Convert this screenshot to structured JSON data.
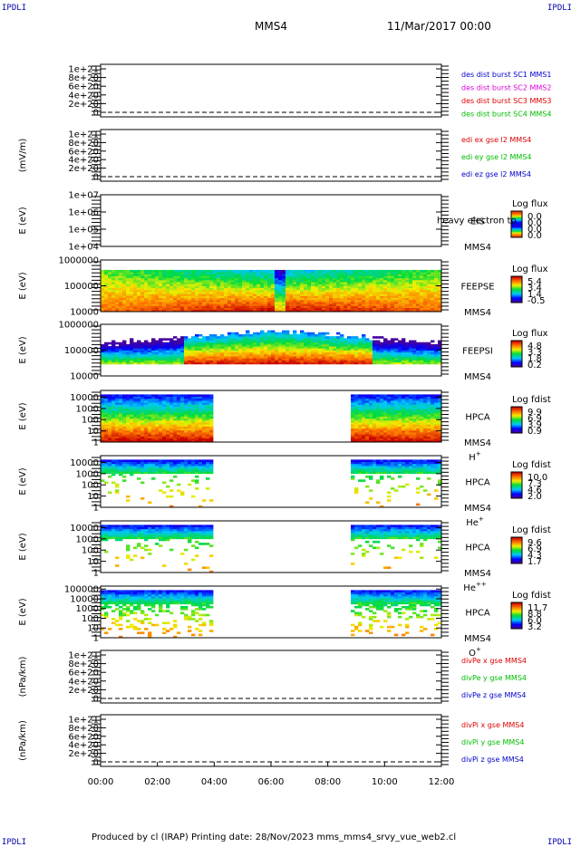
{
  "header": {
    "corner_label": "IPDLI",
    "spacecraft": "MMS4",
    "date": "11/Mar/2017 00:00"
  },
  "footer": {
    "text": "Produced by cl (IRAP)   Printing date: 28/Nov/2023   mms_mms4_srvy_vue_web2.cl"
  },
  "time_axis": {
    "ticks": [
      "00:00",
      "02:00",
      "04:00",
      "06:00",
      "08:00",
      "10:00",
      "12:00"
    ]
  },
  "colors": {
    "red": "#dd0000",
    "green": "#00bb00",
    "blue": "#0000cc",
    "magenta": "#dd00dd",
    "dash": "#000000"
  },
  "chart_data": [
    {
      "type": "line",
      "panel": "des",
      "ylabel": "",
      "ytick_labels": [
        "1e+21",
        "8e+20",
        "6e+20",
        "4e+20",
        "2e+20",
        "0"
      ],
      "ylim": [
        0,
        1e+21
      ],
      "legend": [
        {
          "name": "des dist burst SC1 MMS1",
          "color": "#0000cc"
        },
        {
          "name": "des dist burst SC2 MMS2",
          "color": "#dd00dd"
        },
        {
          "name": "des dist burst SC3 MMS3",
          "color": "#dd0000"
        },
        {
          "name": "des dist burst SC4 MMS4",
          "color": "#00bb00"
        }
      ],
      "series": []
    },
    {
      "type": "line",
      "panel": "edi",
      "ylabel": "(mV/m)",
      "ytick_labels": [
        "1e+21",
        "8e+20",
        "6e+20",
        "4e+20",
        "2e+20",
        "0"
      ],
      "ylim": [
        0,
        1e+21
      ],
      "legend": [
        {
          "name": "edi ex gse l2 MMS4",
          "color": "#dd0000"
        },
        {
          "name": "edi ey gse l2 MMS4",
          "color": "#00bb00"
        },
        {
          "name": "edi ez gse l2 MMS4",
          "color": "#0000cc"
        }
      ],
      "series": []
    },
    {
      "type": "heatmap",
      "panel": "eis",
      "ylabel": "E (eV)",
      "ytick_labels": [
        "1e+07",
        "1e+06",
        "1e+05",
        "1e+04"
      ],
      "ylim": [
        10000.0,
        10000000.0
      ],
      "side_labels": [
        "EIS",
        "MMS4"
      ],
      "overlay_text": "heavy electron to",
      "cbar_title": "Log flux",
      "cbar_labels": [
        "0.0",
        "0.0",
        "0.0",
        "0.0"
      ],
      "bands": []
    },
    {
      "type": "heatmap",
      "panel": "feeps_e",
      "ylabel": "E (eV)",
      "ytick_labels": [
        "1000000",
        "100000",
        "10000"
      ],
      "ylim": [
        10000,
        1000000
      ],
      "side_labels": [
        "FEEPSE",
        "MMS4"
      ],
      "cbar_title": "Log flux",
      "cbar_labels": [
        "5.4",
        "3.4",
        "1.4",
        "-0.5"
      ]
    },
    {
      "type": "heatmap",
      "panel": "feeps_i",
      "ylabel": "E (eV)",
      "ytick_labels": [
        "1000000",
        "100000",
        "10000"
      ],
      "ylim": [
        10000,
        1000000
      ],
      "side_labels": [
        "FEEPSI",
        "MMS4"
      ],
      "cbar_title": "Log flux",
      "cbar_labels": [
        "4.8",
        "3.3",
        "1.8",
        "0.2"
      ]
    },
    {
      "type": "heatmap",
      "panel": "hpca_h",
      "ylabel": "E (eV)",
      "ytick_labels": [
        "10000",
        "1000",
        "100",
        "10",
        "1"
      ],
      "ylim": [
        1,
        40000
      ],
      "side_labels": [
        "HPCA",
        "MMS4"
      ],
      "species": "H",
      "species_sup": "+",
      "cbar_title": "Log fdist",
      "cbar_labels": [
        "9.9",
        "6.9",
        "3.9",
        "0.9"
      ],
      "data_intervals_hours": [
        [
          0,
          3.95
        ],
        [
          8.75,
          12
        ]
      ]
    },
    {
      "type": "heatmap",
      "panel": "hpca_he1",
      "ylabel": "E (eV)",
      "ytick_labels": [
        "10000",
        "1000",
        "100",
        "10",
        "1"
      ],
      "ylim": [
        1,
        40000
      ],
      "side_labels": [
        "HPCA",
        "MMS4"
      ],
      "species": "He",
      "species_sup": "+",
      "cbar_title": "Log fdist",
      "cbar_labels": [
        "10.0",
        "7.3",
        "4.6",
        "2.0"
      ],
      "data_intervals_hours": [
        [
          0,
          3.95
        ],
        [
          8.75,
          12
        ]
      ]
    },
    {
      "type": "heatmap",
      "panel": "hpca_he2",
      "ylabel": "E (eV)",
      "ytick_labels": [
        "10000",
        "1000",
        "100",
        "10",
        "1"
      ],
      "ylim": [
        1,
        40000
      ],
      "side_labels": [
        "HPCA",
        "MMS4"
      ],
      "species": "He",
      "species_sup": "++",
      "cbar_title": "Log fdist",
      "cbar_labels": [
        "9.6",
        "6.9",
        "4.3",
        "1.7"
      ],
      "data_intervals_hours": [
        [
          0,
          3.95
        ],
        [
          8.75,
          12
        ]
      ]
    },
    {
      "type": "heatmap",
      "panel": "hpca_o",
      "ylabel": "E (eV)",
      "ytick_labels": [
        "100000",
        "10000",
        "1000",
        "100",
        "10",
        "1"
      ],
      "ylim": [
        1,
        200000
      ],
      "side_labels": [
        "HPCA",
        "MMS4"
      ],
      "species": "O",
      "species_sup": "+",
      "cbar_title": "Log fdist",
      "cbar_labels": [
        "11.7",
        "8.8",
        "6.0",
        "3.2"
      ],
      "data_intervals_hours": [
        [
          0,
          3.95
        ],
        [
          8.75,
          12
        ]
      ]
    },
    {
      "type": "line",
      "panel": "divpe",
      "ylabel": "(nPa/km)",
      "ytick_labels": [
        "1e+21",
        "8e+20",
        "6e+20",
        "4e+20",
        "2e+20",
        "0"
      ],
      "ylim": [
        0,
        1e+21
      ],
      "legend": [
        {
          "name": "divPe x gse MMS4",
          "color": "#dd0000"
        },
        {
          "name": "divPe y gse MMS4",
          "color": "#00bb00"
        },
        {
          "name": "divPe z gse MMS4",
          "color": "#0000cc"
        }
      ],
      "series": []
    },
    {
      "type": "line",
      "panel": "divpi",
      "ylabel": "(nPa/km)",
      "ytick_labels": [
        "1e+21",
        "8e+20",
        "6e+20",
        "4e+20",
        "2e+20",
        "0"
      ],
      "ylim": [
        0,
        1e+21
      ],
      "legend": [
        {
          "name": "divPi x gse MMS4",
          "color": "#dd0000"
        },
        {
          "name": "divPi y gse MMS4",
          "color": "#00bb00"
        },
        {
          "name": "divPi z gse MMS4",
          "color": "#0000cc"
        }
      ],
      "series": []
    }
  ]
}
